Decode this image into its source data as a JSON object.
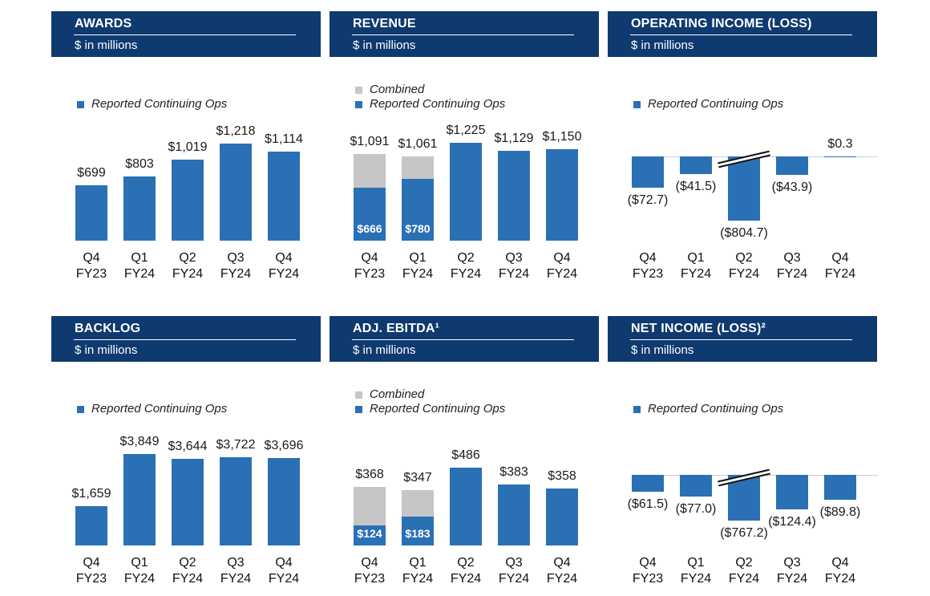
{
  "chart_data": [
    {
      "type": "bar",
      "title": "AWARDS",
      "subtitle": "$ in millions",
      "categories": [
        "Q4 FY23",
        "Q1 FY24",
        "Q2 FY24",
        "Q3 FY24",
        "Q4 FY24"
      ],
      "series": [
        {
          "name": "Reported Continuing Ops",
          "color": "#2a70b5",
          "values": [
            699,
            803,
            1019,
            1218,
            1114
          ],
          "value_labels": [
            "$699",
            "$803",
            "$1,019",
            "$1,218",
            "$1,114"
          ]
        }
      ],
      "ylim": [
        0,
        1400
      ]
    },
    {
      "type": "bar",
      "title": "REVENUE",
      "subtitle": "$ in millions",
      "categories": [
        "Q4 FY23",
        "Q1 FY24",
        "Q2 FY24",
        "Q3 FY24",
        "Q4 FY24"
      ],
      "series": [
        {
          "name": "Combined",
          "color": "#c6c6c6",
          "values": [
            1091,
            1061,
            null,
            null,
            null
          ],
          "value_labels": [
            "$1,091",
            "$1,061",
            null,
            null,
            null
          ]
        },
        {
          "name": "Reported Continuing Ops",
          "color": "#2a70b5",
          "values": [
            666,
            780,
            1225,
            1129,
            1150
          ],
          "value_labels": [
            "$666",
            "$780",
            "$1,225",
            "$1,129",
            "$1,150"
          ]
        }
      ],
      "ylim": [
        0,
        1400
      ]
    },
    {
      "type": "bar",
      "title": "OPERATING INCOME (LOSS)",
      "subtitle": "$ in millions",
      "categories": [
        "Q4 FY23",
        "Q1 FY24",
        "Q2 FY24",
        "Q3 FY24",
        "Q4 FY24"
      ],
      "series": [
        {
          "name": "Reported Continuing Ops",
          "color": "#2a70b5",
          "values": [
            -72.7,
            -41.5,
            -804.7,
            -43.9,
            0.3
          ],
          "value_labels": [
            "($72.7)",
            "($41.5)",
            "($804.7)",
            "($43.9)",
            "$0.3"
          ]
        }
      ],
      "ylim": [
        -150,
        10
      ]
    },
    {
      "type": "bar",
      "title": "BACKLOG",
      "subtitle": "$ in millions",
      "categories": [
        "Q4 FY23",
        "Q1 FY24",
        "Q2 FY24",
        "Q3 FY24",
        "Q4 FY24"
      ],
      "series": [
        {
          "name": "Reported Continuing Ops",
          "color": "#2a70b5",
          "values": [
            1659,
            3849,
            3644,
            3722,
            3696
          ],
          "value_labels": [
            "$1,659",
            "$3,849",
            "$3,644",
            "$3,722",
            "$3,696"
          ]
        }
      ],
      "ylim": [
        0,
        4700
      ]
    },
    {
      "type": "bar",
      "title": "ADJ. EBITDA¹",
      "subtitle": "$ in millions",
      "categories": [
        "Q4 FY23",
        "Q1 FY24",
        "Q2 FY24",
        "Q3 FY24",
        "Q4 FY24"
      ],
      "series": [
        {
          "name": "Combined",
          "color": "#c6c6c6",
          "values": [
            368,
            347,
            null,
            null,
            null
          ],
          "value_labels": [
            "$368",
            "$347",
            null,
            null,
            null
          ]
        },
        {
          "name": "Reported Continuing Ops",
          "color": "#2a70b5",
          "values": [
            124,
            183,
            486,
            383,
            358
          ],
          "value_labels": [
            "$124",
            "$183",
            "$486",
            "$383",
            "$358"
          ]
        }
      ],
      "ylim": [
        0,
        700
      ]
    },
    {
      "type": "bar",
      "title": "NET INCOME (LOSS)²",
      "subtitle": "$ in millions",
      "categories": [
        "Q4 FY23",
        "Q1 FY24",
        "Q2 FY24",
        "Q3 FY24",
        "Q4 FY24"
      ],
      "series": [
        {
          "name": "Reported Continuing Ops",
          "color": "#2a70b5",
          "values": [
            -61.5,
            -77.0,
            -767.2,
            -124.4,
            -89.8
          ],
          "value_labels": [
            "($61.5)",
            "($77.0)",
            "($767.2)",
            "($124.4)",
            "($89.8)"
          ]
        }
      ],
      "ylim": [
        -165,
        10
      ]
    }
  ]
}
